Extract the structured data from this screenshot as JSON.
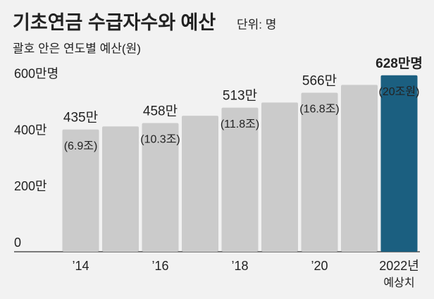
{
  "chart_data": {
    "type": "bar",
    "title": "기초연금 수급자수와 예산",
    "unit": "단위: 명",
    "subtitle": "괄호 안은 연도별 예산(원)",
    "categories": [
      "’14",
      null,
      "’16",
      null,
      "’18",
      null,
      "’20",
      null,
      "2022년"
    ],
    "x_note": "예상치",
    "values": [
      435,
      446,
      458,
      484,
      513,
      531,
      566,
      594,
      628
    ],
    "value_labels": [
      "435만",
      null,
      "458만",
      null,
      "513만",
      null,
      "566만",
      null,
      "628만명"
    ],
    "budget_labels": [
      "(6.9조)",
      null,
      "(10.3조)",
      null,
      "(11.8조)",
      null,
      "(16.8조)",
      null,
      "(20조원)"
    ],
    "colors": [
      "#cbcbcb",
      "#cbcbcb",
      "#cbcbcb",
      "#cbcbcb",
      "#cbcbcb",
      "#cbcbcb",
      "#cbcbcb",
      "#cbcbcb",
      "#1b5f80"
    ],
    "ylim": [
      0,
      650
    ],
    "yticks": [
      0,
      {
        "value": 200,
        "label": "200만"
      },
      {
        "value": 400,
        "label": "400만"
      },
      {
        "value": 600,
        "label": "600만명"
      }
    ]
  }
}
